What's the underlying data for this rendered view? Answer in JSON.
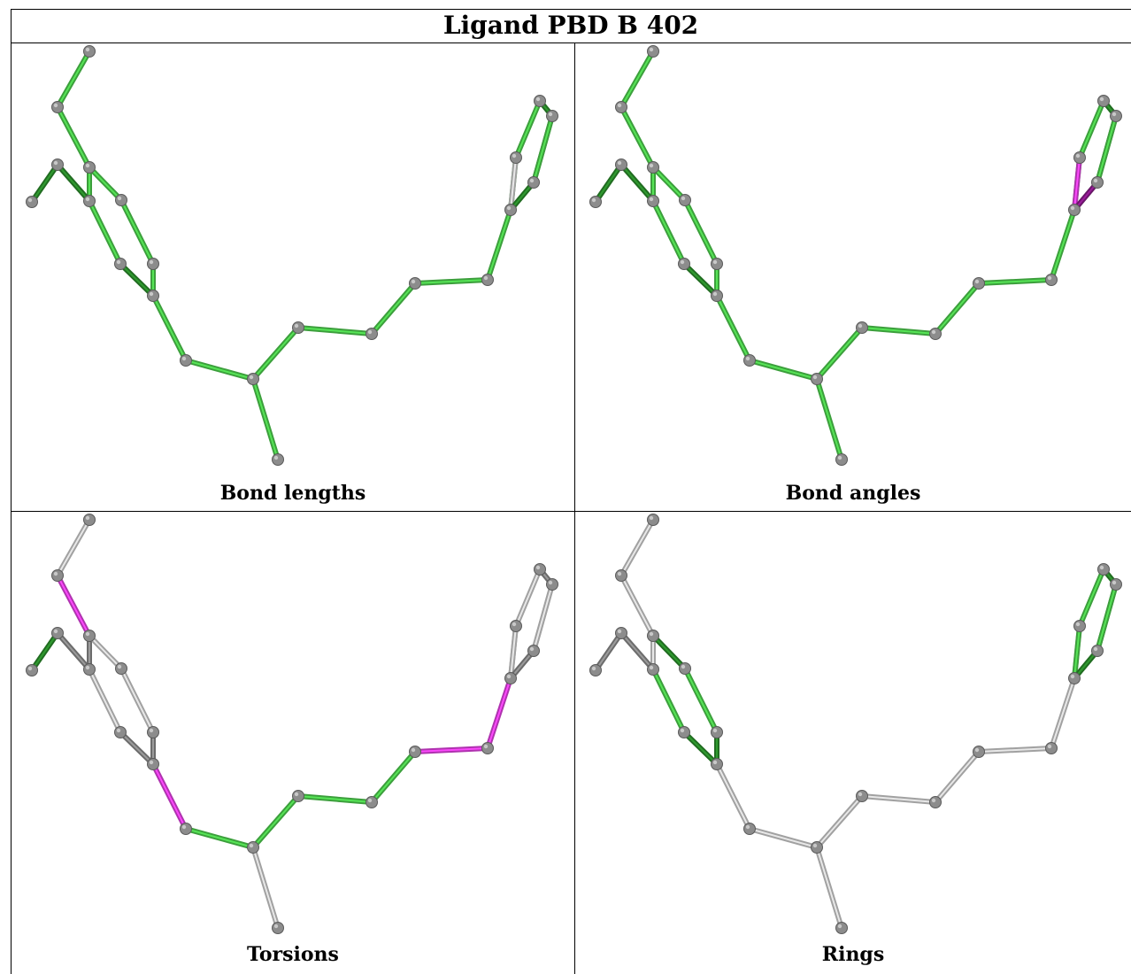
{
  "title": "Ligand PBD B 402",
  "panels": [
    {
      "caption": "Bond lengths",
      "colors": {
        "b01": "green",
        "b02": "green",
        "b03": "green",
        "b04": "green",
        "b05": "darkgreen",
        "b06": "darkgreen",
        "b07": "green",
        "b08": "green",
        "b09": "darkgreen",
        "b10": "green",
        "b11": "green",
        "b12": "green",
        "b13": "green",
        "b14": "green",
        "b15": "green",
        "b16": "green",
        "b17": "green",
        "b18": "green",
        "b19": "green",
        "b20": "green",
        "b21": "green",
        "b22": "darkgreen",
        "b23": "darkgreen",
        "b24": "darkgreen",
        "b25": "green",
        "b26": "lightgray",
        "b27": "darkgreen"
      }
    },
    {
      "caption": "Bond angles",
      "colors": {
        "b01": "green",
        "b02": "green",
        "b03": "green",
        "b04": "green",
        "b05": "darkgreen",
        "b06": "darkgreen",
        "b07": "green",
        "b08": "green",
        "b09": "darkgreen",
        "b10": "green",
        "b11": "green",
        "b12": "green",
        "b13": "green",
        "b14": "green",
        "b15": "green",
        "b16": "green",
        "b17": "green",
        "b18": "green",
        "b19": "green",
        "b20": "green",
        "b21": "green",
        "b22": "darkgreen",
        "b23": "darkgreen",
        "b24": "darkgreen",
        "b25": "green",
        "b26": "magenta",
        "b27": "darkmagenta"
      }
    },
    {
      "caption": "Torsions",
      "colors": {
        "b01": "lightgray",
        "b02": "magenta",
        "b03": "darkgray",
        "b04": "lightgray",
        "b05": "darkgray",
        "b06": "darkgreen",
        "b07": "lightgray",
        "b08": "lightgray",
        "b09": "darkgray",
        "b10": "darkgray",
        "b11": "magenta",
        "b12": "green",
        "b13": "lightgray",
        "b14": "green",
        "b15": "green",
        "b16": "green",
        "b17": "magenta",
        "b18": "magenta",
        "b19": "lightgray",
        "b20": "lightgray",
        "b21": "darkgray",
        "b22": "lightgray",
        "b23": "darkgray",
        "b24": "darkgray",
        "b25": "lightgray",
        "b26": "lightgray",
        "b27": "darkgray"
      }
    },
    {
      "caption": "Rings",
      "colors": {
        "b01": "lightgray",
        "b02": "lightgray",
        "b03": "lightgray",
        "b04": "darkgreen",
        "b05": "darkgray",
        "b06": "darkgray",
        "b07": "green",
        "b08": "green",
        "b09": "darkgreen",
        "b10": "darkgreen",
        "b11": "lightgray",
        "b12": "lightgray",
        "b13": "lightgray",
        "b14": "lightgray",
        "b15": "lightgray",
        "b16": "lightgray",
        "b17": "lightgray",
        "b18": "lightgray",
        "b19": "lightgray",
        "b20": "green",
        "b21": "green",
        "b22": "darkgreen",
        "b23": "darkgreen",
        "b24": "darkgreen",
        "b25": "green",
        "b26": "green",
        "b27": "darkgreen"
      }
    }
  ],
  "palette": {
    "green": "#4dcc4d",
    "darkgreen": "#2a8a2a",
    "lightgray": "#cfcfcf",
    "darkgray": "#8a8a8a",
    "magenta": "#e040e0",
    "darkmagenta": "#8a1a8a",
    "atom": "#8c8c8c"
  }
}
